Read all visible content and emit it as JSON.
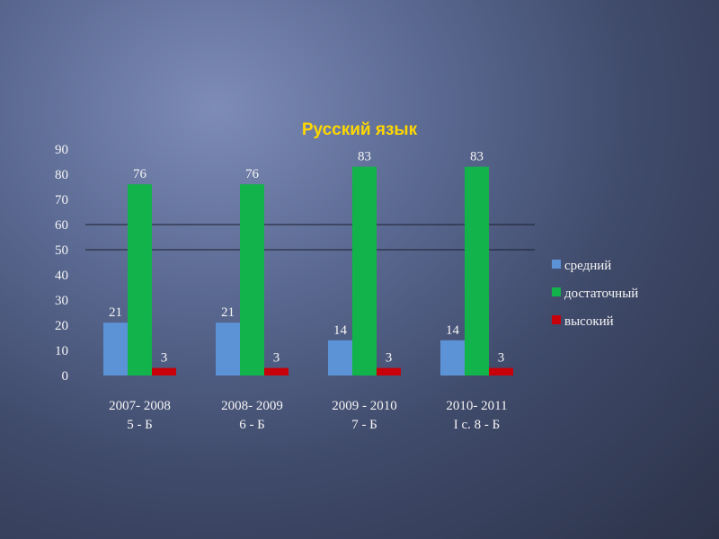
{
  "chart_data": {
    "type": "bar",
    "title": "Русский язык",
    "categories": [
      [
        "2007- 2008",
        "5 - Б"
      ],
      [
        "2008- 2009",
        "6 - Б"
      ],
      [
        "2009 - 2010",
        "7    - Б"
      ],
      [
        "2010- 2011",
        "I с.  8 - Б"
      ]
    ],
    "series": [
      {
        "name": "средний",
        "color": "#5b93d6",
        "values": [
          21,
          21,
          14,
          14
        ]
      },
      {
        "name": "достаточный",
        "color": "#12b34a",
        "values": [
          76,
          76,
          83,
          83
        ]
      },
      {
        "name": "высокий",
        "color": "#c8000a",
        "values": [
          3,
          3,
          3,
          3
        ]
      }
    ],
    "ylim": [
      0,
      90
    ],
    "yticks": [
      0,
      10,
      20,
      30,
      40,
      50,
      60,
      70,
      80,
      90
    ],
    "gridlines_at": [
      50,
      60
    ],
    "legend": "right"
  }
}
